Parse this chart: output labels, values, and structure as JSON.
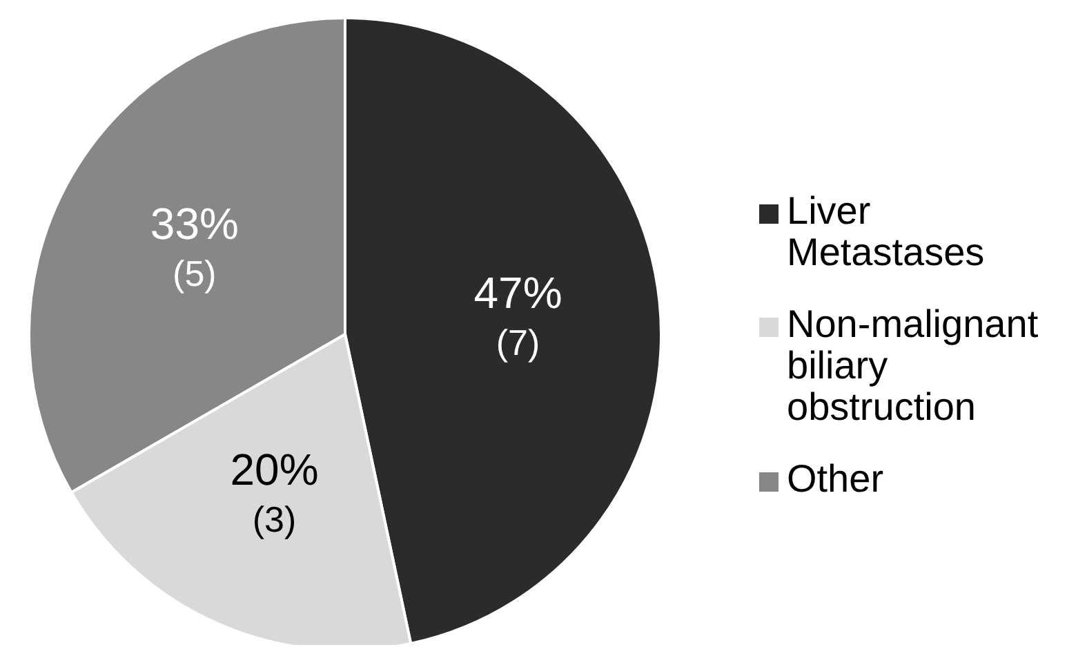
{
  "chart_data": {
    "type": "pie",
    "categories": [
      "Liver Metastases",
      "Non-malignant biliary obstruction",
      "Other"
    ],
    "values": [
      7,
      3,
      5
    ],
    "colors": [
      "#2b2b2b",
      "#d9d9d9",
      "#878787"
    ],
    "value_labels": [
      "47%\n(7)",
      "20%\n(3)",
      "33%\n(5)"
    ],
    "legend": "right"
  }
}
